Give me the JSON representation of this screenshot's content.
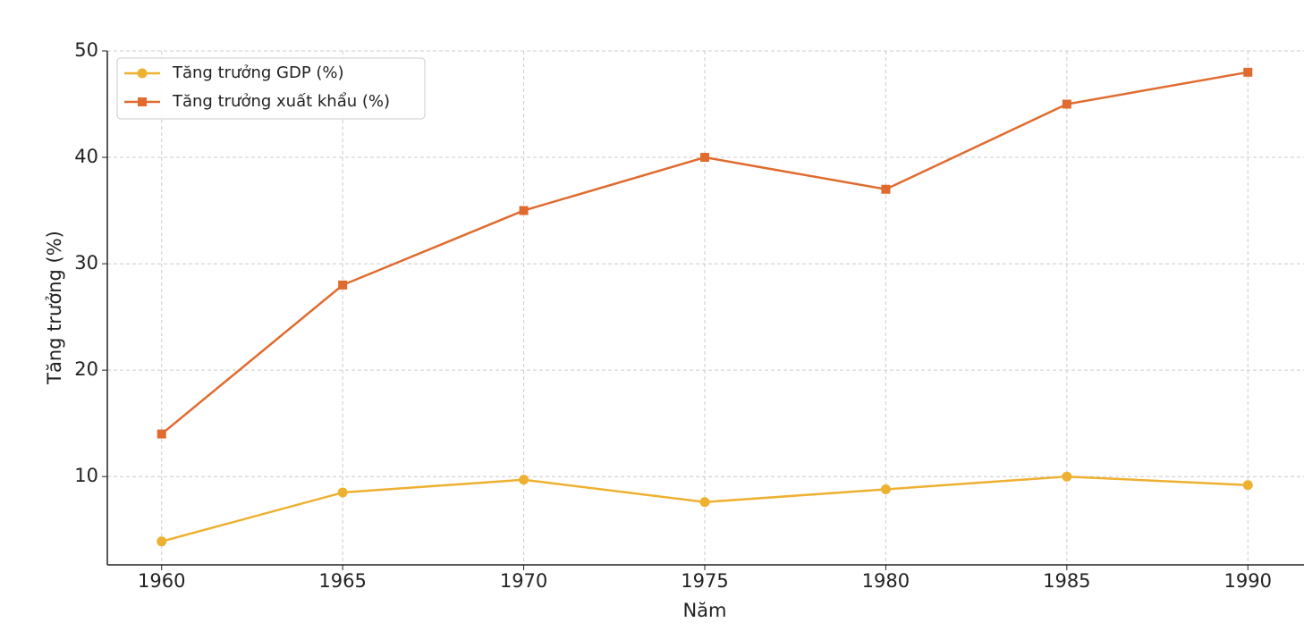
{
  "chart_data": {
    "type": "line",
    "x": [
      1960,
      1965,
      1970,
      1975,
      1980,
      1985,
      1990
    ],
    "series": [
      {
        "name": "Tăng trưởng GDP (%)",
        "color": "#eeb030",
        "marker": "circle",
        "values": [
          3.9,
          8.5,
          9.7,
          7.6,
          8.8,
          10,
          9.2
        ]
      },
      {
        "name": "Tăng trưởng xuất khẩu (%)",
        "color": "#e06b2f",
        "marker": "square",
        "values": [
          14,
          28,
          35,
          40,
          37,
          45,
          48
        ]
      }
    ],
    "xlabel": "Năm",
    "ylabel": "Tăng trưởng (%)",
    "xlim": [
      1958.5,
      1991.55
    ],
    "ylim": [
      1.7,
      50
    ],
    "xticks": [
      1960,
      1965,
      1970,
      1975,
      1980,
      1985,
      1990
    ],
    "yticks": [
      10,
      20,
      30,
      40,
      50
    ],
    "grid": true,
    "legend": "upper left"
  }
}
